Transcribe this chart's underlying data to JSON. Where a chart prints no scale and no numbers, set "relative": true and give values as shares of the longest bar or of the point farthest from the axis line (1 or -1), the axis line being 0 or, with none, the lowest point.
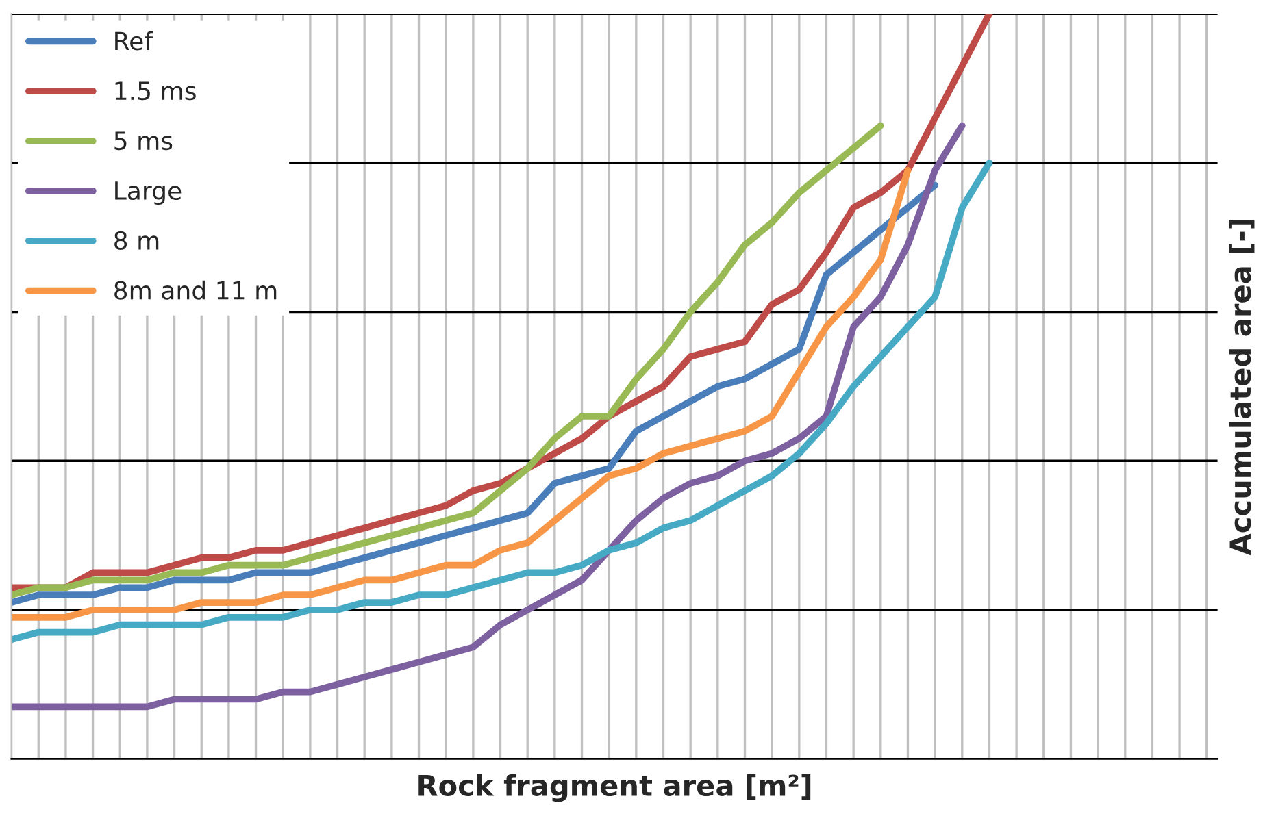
{
  "chart_data": {
    "type": "line",
    "relative": true,
    "xlabel": "Rock fragment area [m²]",
    "ylabel": "Accumulated area [-]",
    "grid": true,
    "legend": "top left",
    "tick_labels": false,
    "marker": "none",
    "line_style": "solid",
    "categories": [
      null,
      null,
      null,
      null,
      null,
      null,
      null,
      null,
      null,
      null,
      null,
      null,
      null,
      null,
      null,
      null,
      null,
      null,
      null,
      null,
      null,
      null,
      null,
      null,
      null,
      null,
      null,
      null,
      null,
      null,
      null,
      null,
      null,
      null,
      null,
      null,
      null,
      null,
      null,
      null,
      null,
      null,
      null,
      null,
      null
    ],
    "series": [
      {
        "name": "Ref",
        "color": "#4a7ebb",
        "values": [
          0.21,
          0.22,
          0.22,
          0.22,
          0.23,
          0.23,
          0.24,
          0.24,
          0.24,
          0.25,
          0.25,
          0.25,
          0.26,
          0.27,
          0.28,
          0.29,
          0.3,
          0.31,
          0.32,
          0.33,
          0.37,
          0.38,
          0.39,
          0.44,
          0.46,
          0.48,
          0.5,
          0.51,
          0.53,
          0.55,
          0.65,
          0.68,
          0.71,
          0.74,
          0.77,
          null,
          null,
          null,
          null,
          null,
          null,
          null,
          null,
          null,
          null
        ]
      },
      {
        "name": "1.5 ms",
        "color": "#be4b48",
        "values": [
          0.23,
          0.23,
          0.23,
          0.25,
          0.25,
          0.25,
          0.26,
          0.27,
          0.27,
          0.28,
          0.28,
          0.29,
          0.3,
          0.31,
          0.32,
          0.33,
          0.34,
          0.36,
          0.37,
          0.39,
          0.41,
          0.43,
          0.46,
          0.48,
          0.5,
          0.54,
          0.55,
          0.56,
          0.61,
          0.63,
          0.68,
          0.74,
          0.76,
          0.79,
          0.86,
          0.93,
          1.0,
          null,
          null,
          null,
          null,
          null,
          null,
          null,
          null
        ]
      },
      {
        "name": "5 ms",
        "color": "#98b954",
        "values": [
          0.22,
          0.23,
          0.23,
          0.24,
          0.24,
          0.24,
          0.25,
          0.25,
          0.26,
          0.26,
          0.26,
          0.27,
          0.28,
          0.29,
          0.3,
          0.31,
          0.32,
          0.33,
          0.36,
          0.39,
          0.43,
          0.46,
          0.46,
          0.51,
          0.55,
          0.6,
          0.64,
          0.69,
          0.72,
          0.76,
          0.79,
          0.82,
          0.85,
          null,
          null,
          null,
          null,
          null,
          null,
          null,
          null,
          null,
          null,
          null,
          null
        ]
      },
      {
        "name": "Large",
        "color": "#7d60a0",
        "values": [
          0.07,
          0.07,
          0.07,
          0.07,
          0.07,
          0.07,
          0.08,
          0.08,
          0.08,
          0.08,
          0.09,
          0.09,
          0.1,
          0.11,
          0.12,
          0.13,
          0.14,
          0.15,
          0.18,
          0.2,
          0.22,
          0.24,
          0.28,
          0.32,
          0.35,
          0.37,
          0.38,
          0.4,
          0.41,
          0.43,
          0.46,
          0.58,
          0.62,
          0.69,
          0.79,
          0.85,
          null,
          null,
          null,
          null,
          null,
          null,
          null,
          null,
          null
        ]
      },
      {
        "name": "8 m",
        "color": "#46aac5",
        "values": [
          0.16,
          0.17,
          0.17,
          0.17,
          0.18,
          0.18,
          0.18,
          0.18,
          0.19,
          0.19,
          0.19,
          0.2,
          0.2,
          0.21,
          0.21,
          0.22,
          0.22,
          0.23,
          0.24,
          0.25,
          0.25,
          0.26,
          0.28,
          0.29,
          0.31,
          0.32,
          0.34,
          0.36,
          0.38,
          0.41,
          0.45,
          0.5,
          0.54,
          0.58,
          0.62,
          0.74,
          0.8,
          null,
          null,
          null,
          null,
          null,
          null,
          null,
          null
        ]
      },
      {
        "name": "8m and 11 m",
        "color": "#f79646",
        "values": [
          0.19,
          0.19,
          0.19,
          0.2,
          0.2,
          0.2,
          0.2,
          0.21,
          0.21,
          0.21,
          0.22,
          0.22,
          0.23,
          0.24,
          0.24,
          0.25,
          0.26,
          0.26,
          0.28,
          0.29,
          0.32,
          0.35,
          0.38,
          0.39,
          0.41,
          0.42,
          0.43,
          0.44,
          0.46,
          0.52,
          0.58,
          0.62,
          0.67,
          0.79,
          null,
          null,
          null,
          null,
          null,
          null,
          null,
          null,
          null,
          null,
          null
        ]
      }
    ]
  }
}
